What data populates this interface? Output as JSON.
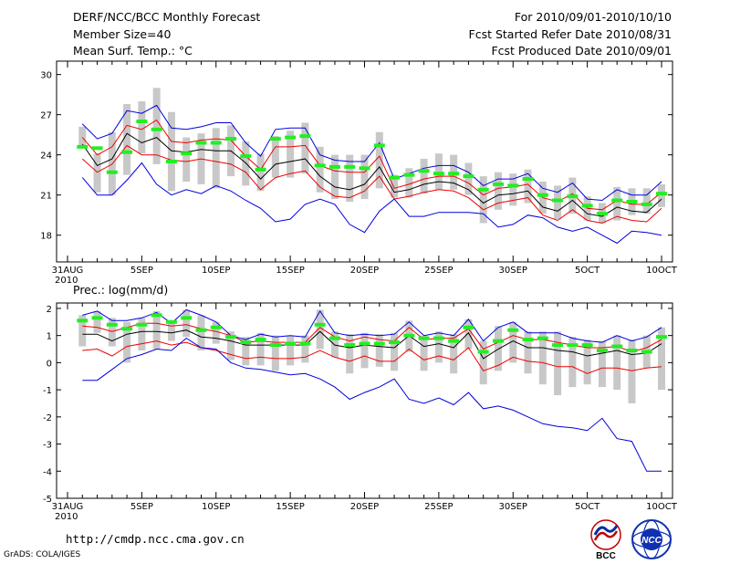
{
  "header": {
    "title": "DERF/NCC/BCC Monthly Forecast",
    "member_size": "Member Size=40",
    "variable": "Mean Surf. Temp.: °C",
    "period": "For 2010/09/01-2010/10/10",
    "started": "Fcst Started Refer Date 2010/08/31",
    "produced": "Fcst Produced Date 2010/09/01"
  },
  "footer": {
    "url": "http://cmdp.ncc.cma.gov.cn",
    "credit": "GrADS: COLA/IGES",
    "logo_left": "BCC",
    "logo_right": "NCC"
  },
  "colors": {
    "max_line": "#0000dd",
    "min_line": "#0000dd",
    "upper_line": "#ee0000",
    "lower_line": "#ee0000",
    "mean_line": "#000000",
    "box": "#c8c8c8",
    "marker": "#22ee22"
  },
  "chart_data": [
    {
      "type": "line",
      "title": "Mean Surf. Temp.: °C",
      "xlabel": "",
      "ylabel": "",
      "xlim": [
        0,
        40
      ],
      "ylim": [
        16,
        31
      ],
      "grid": false,
      "yticks": [
        18,
        21,
        24,
        27,
        30
      ],
      "xticks": [
        {
          "label": "31AUG",
          "sub": "2010",
          "x": 0
        },
        {
          "label": "5SEP",
          "x": 5
        },
        {
          "label": "10SEP",
          "x": 10
        },
        {
          "label": "15SEP",
          "x": 15
        },
        {
          "label": "20SEP",
          "x": 20
        },
        {
          "label": "25SEP",
          "x": 25
        },
        {
          "label": "30SEP",
          "x": 30
        },
        {
          "label": "5OCT",
          "x": 35
        },
        {
          "label": "10OCT",
          "x": 40
        }
      ],
      "x": [
        1,
        2,
        3,
        4,
        5,
        6,
        7,
        8,
        9,
        10,
        11,
        12,
        13,
        14,
        15,
        16,
        17,
        18,
        19,
        20,
        21,
        22,
        23,
        24,
        25,
        26,
        27,
        28,
        29,
        30,
        31,
        32,
        33,
        34,
        35,
        36,
        37,
        38,
        39,
        40
      ],
      "series": [
        {
          "name": "max",
          "style": "max_line",
          "values": [
            26.3,
            25.2,
            25.6,
            27.3,
            27.1,
            27.7,
            26.0,
            25.9,
            26.1,
            26.4,
            26.4,
            24.9,
            23.9,
            25.9,
            26.0,
            26.0,
            24.0,
            23.6,
            23.5,
            23.5,
            24.9,
            22.2,
            22.6,
            23.0,
            23.2,
            23.2,
            22.7,
            21.7,
            22.2,
            22.2,
            22.6,
            21.5,
            21.2,
            21.9,
            20.7,
            20.6,
            21.4,
            21.0,
            21.0,
            22.0
          ]
        },
        {
          "name": "upper",
          "style": "upper_line",
          "values": [
            25.3,
            24.0,
            24.6,
            26.2,
            25.9,
            26.6,
            25.0,
            24.9,
            25.1,
            25.2,
            25.1,
            23.9,
            22.9,
            24.6,
            24.6,
            24.7,
            23.2,
            22.8,
            22.7,
            22.7,
            23.9,
            21.5,
            21.8,
            22.2,
            22.4,
            22.4,
            21.9,
            21.0,
            21.5,
            21.6,
            21.8,
            20.8,
            20.5,
            21.1,
            20.0,
            19.9,
            20.6,
            20.3,
            20.3,
            21.2
          ]
        },
        {
          "name": "mean",
          "style": "mean_line",
          "values": [
            24.8,
            23.2,
            23.7,
            25.6,
            24.9,
            25.3,
            24.3,
            24.2,
            24.4,
            24.3,
            24.3,
            23.4,
            22.2,
            23.3,
            23.5,
            23.7,
            22.4,
            21.6,
            21.4,
            21.8,
            23.1,
            21.2,
            21.4,
            21.8,
            22.0,
            21.9,
            21.4,
            20.4,
            21.0,
            21.1,
            21.3,
            20.1,
            19.8,
            20.6,
            19.6,
            19.4,
            20.1,
            19.8,
            19.7,
            20.7
          ]
        },
        {
          "name": "lower",
          "style": "lower_line",
          "values": [
            23.7,
            22.7,
            23.3,
            24.7,
            24.0,
            24.0,
            23.6,
            23.5,
            23.7,
            23.5,
            23.3,
            22.7,
            21.4,
            22.3,
            22.6,
            22.8,
            21.6,
            20.9,
            20.8,
            21.3,
            22.4,
            20.7,
            20.9,
            21.2,
            21.4,
            21.3,
            20.8,
            19.9,
            20.4,
            20.6,
            20.8,
            19.5,
            19.1,
            19.9,
            19.1,
            18.9,
            19.4,
            19.1,
            19.0,
            20.0
          ]
        },
        {
          "name": "min",
          "style": "min_line",
          "values": [
            22.3,
            21.0,
            21.0,
            22.1,
            23.4,
            21.8,
            21.0,
            21.4,
            21.1,
            21.7,
            21.3,
            20.6,
            20.0,
            19.0,
            19.2,
            20.3,
            20.7,
            20.3,
            18.8,
            18.2,
            19.8,
            20.7,
            19.4,
            19.4,
            19.7,
            19.7,
            19.7,
            19.6,
            18.6,
            18.8,
            19.5,
            19.3,
            18.6,
            18.3,
            18.6,
            18.0,
            17.4,
            18.3,
            18.2,
            18.0
          ]
        }
      ],
      "boxes": {
        "low": [
          24.5,
          21.2,
          21.0,
          22.5,
          24.1,
          23.3,
          21.3,
          22.0,
          21.8,
          21.5,
          22.4,
          21.7,
          21.3,
          22.3,
          22.3,
          22.6,
          21.2,
          20.7,
          20.5,
          20.7,
          21.5,
          20.8,
          20.8,
          21.1,
          21.4,
          21.4,
          21.0,
          18.9,
          19.9,
          20.2,
          20.4,
          19.6,
          19.2,
          19.6,
          19.1,
          18.9,
          19.1,
          19.5,
          19.6,
          20.1
        ],
        "high": [
          26.1,
          24.1,
          25.7,
          27.8,
          28.0,
          29.0,
          27.2,
          25.3,
          25.6,
          26.0,
          26.2,
          25.0,
          24.1,
          25.4,
          25.8,
          26.4,
          24.6,
          24.0,
          24.0,
          24.0,
          25.7,
          22.5,
          23.0,
          23.7,
          24.1,
          24.0,
          23.4,
          22.4,
          22.7,
          22.6,
          22.9,
          22.0,
          21.7,
          22.3,
          20.9,
          20.4,
          21.6,
          21.5,
          21.5,
          21.8
        ]
      },
      "markers": [
        24.6,
        24.5,
        22.7,
        24.2,
        26.5,
        25.9,
        23.5,
        24.1,
        24.9,
        24.9,
        25.2,
        23.9,
        22.9,
        25.2,
        25.3,
        25.4,
        23.2,
        23.1,
        23.1,
        23.0,
        24.7,
        22.3,
        22.5,
        22.8,
        22.6,
        22.6,
        22.4,
        21.4,
        21.8,
        21.7,
        22.2,
        21.0,
        20.6,
        20.9,
        20.2,
        19.6,
        20.6,
        20.5,
        20.3,
        21.1
      ]
    },
    {
      "type": "line",
      "title": "Prec.: log(mm/d)",
      "xlabel": "",
      "ylabel": "",
      "xlim": [
        0,
        40
      ],
      "ylim": [
        -5,
        2.2
      ],
      "grid": false,
      "yticks": [
        -5,
        -4,
        -3,
        -2,
        -1,
        0,
        1,
        2
      ],
      "xticks": [
        {
          "label": "31AUG",
          "sub": "2010",
          "x": 0
        },
        {
          "label": "5SEP",
          "x": 5
        },
        {
          "label": "10SEP",
          "x": 10
        },
        {
          "label": "15SEP",
          "x": 15
        },
        {
          "label": "20SEP",
          "x": 20
        },
        {
          "label": "25SEP",
          "x": 25
        },
        {
          "label": "30SEP",
          "x": 30
        },
        {
          "label": "5OCT",
          "x": 35
        },
        {
          "label": "10OCT",
          "x": 40
        }
      ],
      "x": [
        1,
        2,
        3,
        4,
        5,
        6,
        7,
        8,
        9,
        10,
        11,
        12,
        13,
        14,
        15,
        16,
        17,
        18,
        19,
        20,
        21,
        22,
        23,
        24,
        25,
        26,
        27,
        28,
        29,
        30,
        31,
        32,
        33,
        34,
        35,
        36,
        37,
        38,
        39,
        40
      ],
      "series": [
        {
          "name": "max",
          "style": "max_line",
          "values": [
            1.75,
            1.9,
            1.55,
            1.55,
            1.65,
            1.85,
            1.45,
            1.95,
            1.75,
            1.5,
            1.0,
            0.85,
            1.05,
            0.95,
            1.0,
            0.95,
            1.9,
            1.1,
            1.0,
            1.05,
            1.0,
            1.05,
            1.5,
            1.0,
            1.1,
            1.0,
            1.6,
            0.8,
            1.3,
            1.5,
            1.1,
            1.1,
            1.1,
            0.9,
            0.8,
            0.75,
            1.0,
            0.8,
            0.95,
            1.3
          ]
        },
        {
          "name": "upper",
          "style": "upper_line",
          "values": [
            1.35,
            1.3,
            1.15,
            1.3,
            1.45,
            1.45,
            1.35,
            1.4,
            1.25,
            1.15,
            1.0,
            0.75,
            0.8,
            0.75,
            0.75,
            0.75,
            1.3,
            0.95,
            0.8,
            0.95,
            0.85,
            0.8,
            1.3,
            0.85,
            0.9,
            0.9,
            1.25,
            0.5,
            0.75,
            1.0,
            0.85,
            0.85,
            0.75,
            0.65,
            0.55,
            0.55,
            0.6,
            0.4,
            0.55,
            0.85
          ]
        },
        {
          "name": "mean",
          "style": "mean_line",
          "values": [
            1.05,
            1.05,
            0.8,
            1.05,
            1.15,
            1.15,
            1.1,
            1.2,
            0.95,
            0.9,
            0.8,
            0.65,
            0.65,
            0.65,
            0.65,
            0.65,
            1.15,
            0.65,
            0.55,
            0.65,
            0.6,
            0.55,
            1.0,
            0.6,
            0.7,
            0.55,
            1.1,
            0.15,
            0.5,
            0.8,
            0.55,
            0.55,
            0.45,
            0.4,
            0.25,
            0.35,
            0.45,
            0.3,
            0.35,
            0.7
          ]
        },
        {
          "name": "lower",
          "style": "lower_line",
          "values": [
            0.45,
            0.5,
            0.25,
            0.6,
            0.7,
            0.8,
            0.65,
            0.75,
            0.55,
            0.45,
            0.3,
            0.15,
            0.2,
            0.15,
            0.15,
            0.2,
            0.45,
            0.2,
            0.05,
            0.25,
            0.05,
            0.05,
            0.5,
            0.1,
            0.25,
            0.1,
            0.55,
            -0.3,
            -0.1,
            0.2,
            0.05,
            0.0,
            -0.15,
            -0.15,
            -0.4,
            -0.2,
            -0.2,
            -0.3,
            -0.2,
            -0.15
          ]
        },
        {
          "name": "min",
          "style": "min_line",
          "values": [
            -0.65,
            -0.65,
            -0.25,
            0.15,
            0.3,
            0.5,
            0.45,
            0.9,
            0.55,
            0.5,
            0.0,
            -0.2,
            -0.25,
            -0.35,
            -0.45,
            -0.4,
            -0.6,
            -0.9,
            -1.35,
            -1.1,
            -0.9,
            -0.6,
            -1.35,
            -1.5,
            -1.3,
            -1.55,
            -1.1,
            -1.7,
            -1.6,
            -1.75,
            -2.0,
            -2.25,
            -2.35,
            -2.4,
            -2.5,
            -2.05,
            -2.8,
            -2.9,
            -4.0,
            -4.0
          ]
        }
      ],
      "boxes": {
        "low": [
          0.6,
          1.1,
          0.6,
          0.0,
          0.45,
          0.5,
          0.8,
          0.95,
          0.45,
          0.7,
          0.1,
          -0.1,
          -0.1,
          -0.3,
          -0.1,
          0.0,
          0.5,
          0.2,
          -0.4,
          -0.2,
          -0.15,
          -0.3,
          0.4,
          -0.3,
          0.0,
          -0.4,
          0.5,
          -0.8,
          -0.3,
          0.0,
          -0.4,
          -0.8,
          -1.2,
          -0.9,
          -0.8,
          -0.9,
          -1.0,
          -1.5,
          -0.2,
          -1.0
        ],
        "high": [
          1.75,
          1.9,
          1.65,
          1.5,
          1.65,
          1.9,
          1.55,
          1.95,
          1.75,
          1.5,
          1.15,
          0.95,
          1.1,
          1.0,
          1.0,
          1.0,
          1.95,
          1.15,
          1.05,
          1.1,
          1.05,
          1.1,
          1.55,
          1.0,
          1.15,
          1.05,
          1.6,
          0.8,
          1.35,
          1.5,
          1.15,
          1.15,
          1.15,
          0.95,
          0.85,
          0.8,
          1.0,
          0.85,
          1.0,
          1.3
        ]
      },
      "markers": [
        1.55,
        1.65,
        1.4,
        1.25,
        1.4,
        1.75,
        1.5,
        1.65,
        1.2,
        1.3,
        0.95,
        0.75,
        0.85,
        0.65,
        0.7,
        0.7,
        1.4,
        0.9,
        0.65,
        0.7,
        0.7,
        0.75,
        1.0,
        0.9,
        0.9,
        0.8,
        1.3,
        0.4,
        0.8,
        1.2,
        0.85,
        0.9,
        0.65,
        0.65,
        0.65,
        0.45,
        0.6,
        0.45,
        0.4,
        0.95
      ]
    }
  ]
}
